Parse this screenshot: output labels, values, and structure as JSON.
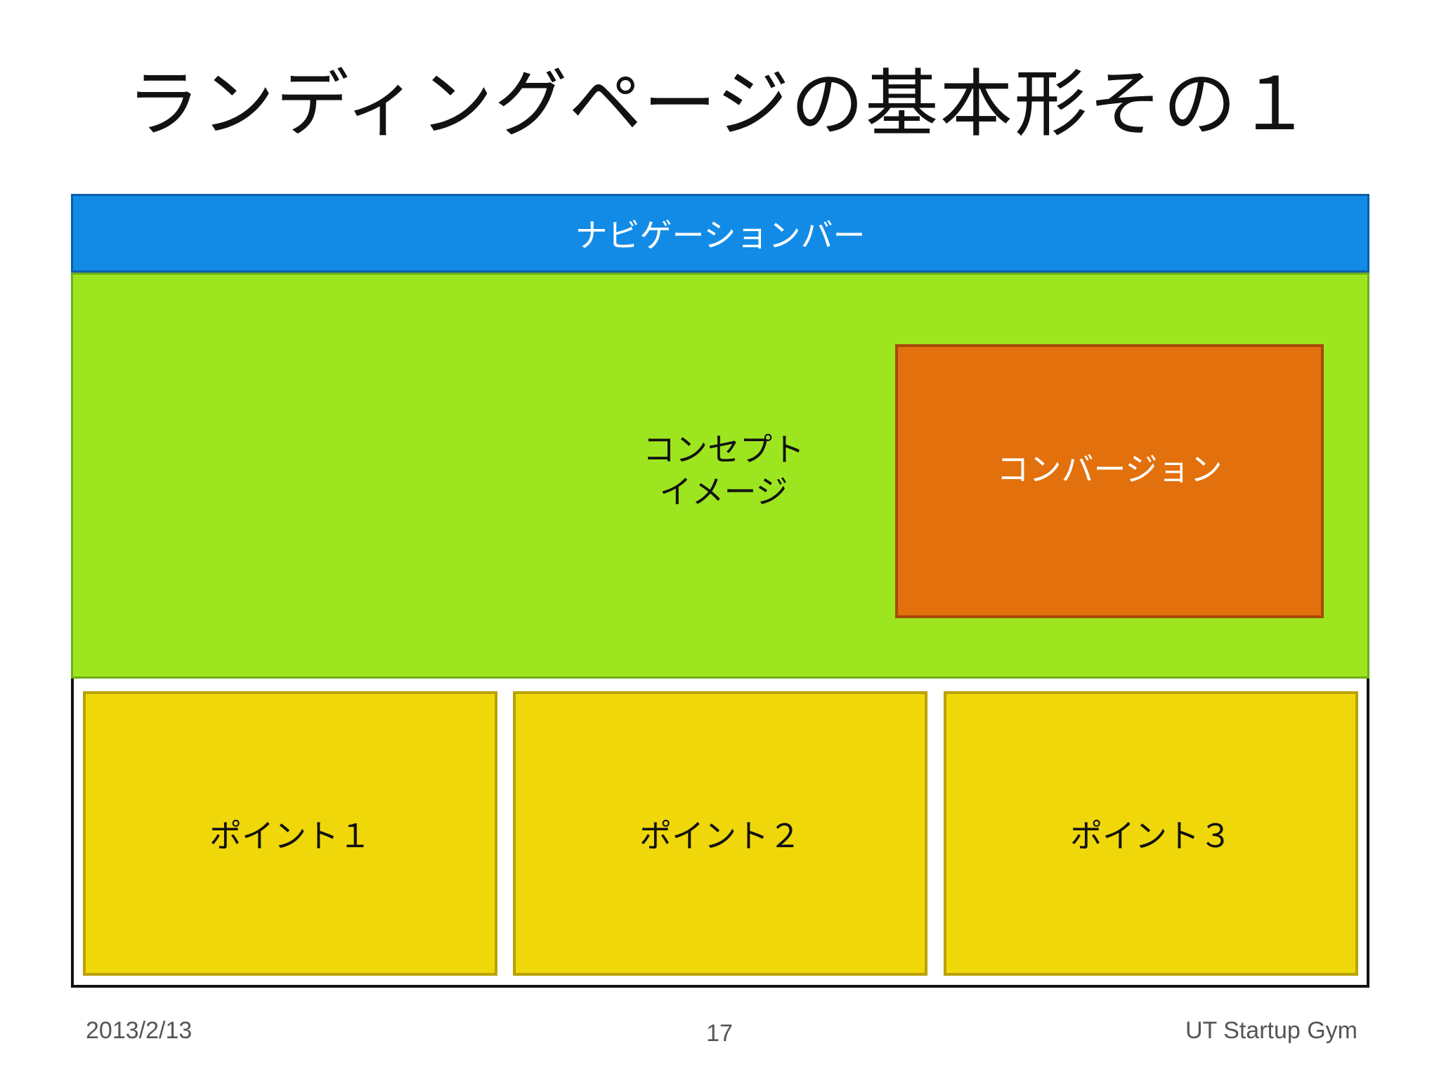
{
  "slide": {
    "title": "ランディングページの基本形その１",
    "navbar_label": "ナビゲーションバー",
    "concept_line1": "コンセプト",
    "concept_line2": "イメージ",
    "conversion_label": "コンバージョン",
    "points": [
      "ポイント１",
      "ポイント２",
      "ポイント３"
    ]
  },
  "footer": {
    "date": "2013/2/13",
    "page_number": "17",
    "organization": "UT Startup Gym"
  },
  "colors": {
    "navbar": "#128be6",
    "hero": "#9de61f",
    "conversion": "#e2700c",
    "points": "#f0d70a"
  }
}
